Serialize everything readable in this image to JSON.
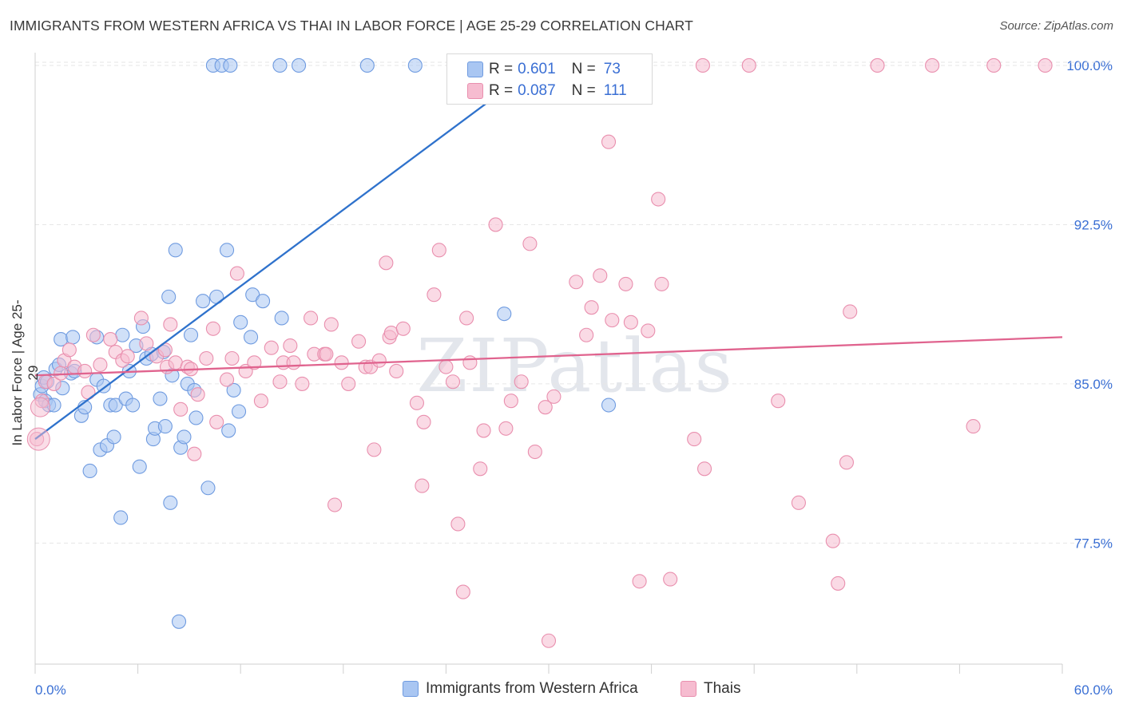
{
  "title": "IMMIGRANTS FROM WESTERN AFRICA VS THAI IN LABOR FORCE | AGE 25-29 CORRELATION CHART",
  "source": "Source: ZipAtlas.com",
  "watermark": "ZIPatlas",
  "colors": {
    "blue_fill": "#a9c6f2",
    "blue_stroke": "#6f9be0",
    "blue_line": "#2f72cc",
    "pink_fill": "#f6bcd0",
    "pink_stroke": "#e98fae",
    "pink_line": "#e0638e",
    "axis_text": "#3a6fd4"
  },
  "stats": {
    "rows": [
      {
        "r_label": "R =",
        "r_value": "0.601",
        "n_label": "N =",
        "n_value": "73"
      },
      {
        "r_label": "R =",
        "r_value": "0.087",
        "n_label": "N =",
        "n_value": "111"
      }
    ]
  },
  "chart_data": {
    "type": "scatter",
    "xlabel": "",
    "ylabel": "In Labor Force | Age 25-29",
    "x_ticks": [
      "0.0%",
      "60.0%"
    ],
    "y_ticks": [
      "100.0%",
      "92.5%",
      "85.0%",
      "77.5%"
    ],
    "y_tick_values": [
      100.0,
      92.5,
      85.0,
      77.5
    ],
    "xlim": [
      0,
      60
    ],
    "ylim": [
      71.8,
      100.6
    ],
    "grid": "horizontal dashed",
    "legend_position": "bottom",
    "series": [
      {
        "name": "Immigrants from Western Africa",
        "trend": [
          [
            0.0,
            82.4
          ],
          [
            30.0,
            100.4
          ]
        ],
        "points": [
          [
            0.3,
            84.5
          ],
          [
            0.4,
            84.9
          ],
          [
            0.5,
            85.3
          ],
          [
            0.6,
            84.2
          ],
          [
            0.7,
            85.1
          ],
          [
            0.8,
            84.0
          ],
          [
            1.1,
            84.0
          ],
          [
            1.2,
            85.7
          ],
          [
            1.4,
            85.9
          ],
          [
            1.5,
            87.1
          ],
          [
            1.6,
            84.8
          ],
          [
            2.1,
            85.5
          ],
          [
            2.2,
            87.2
          ],
          [
            2.3,
            85.6
          ],
          [
            2.7,
            83.5
          ],
          [
            2.9,
            83.9
          ],
          [
            3.2,
            80.9
          ],
          [
            3.6,
            87.2
          ],
          [
            3.6,
            85.2
          ],
          [
            3.8,
            81.9
          ],
          [
            4.0,
            84.9
          ],
          [
            4.2,
            82.1
          ],
          [
            4.4,
            84.0
          ],
          [
            4.6,
            82.5
          ],
          [
            4.7,
            84.0
          ],
          [
            5.0,
            78.7
          ],
          [
            5.1,
            87.3
          ],
          [
            5.3,
            84.3
          ],
          [
            5.5,
            85.6
          ],
          [
            5.7,
            84.0
          ],
          [
            5.9,
            86.8
          ],
          [
            6.1,
            81.1
          ],
          [
            6.3,
            87.7
          ],
          [
            6.5,
            86.2
          ],
          [
            6.8,
            86.4
          ],
          [
            6.9,
            82.4
          ],
          [
            7.0,
            82.9
          ],
          [
            7.3,
            84.3
          ],
          [
            7.5,
            86.5
          ],
          [
            7.6,
            83.0
          ],
          [
            7.8,
            89.1
          ],
          [
            7.9,
            79.4
          ],
          [
            8.0,
            85.4
          ],
          [
            8.2,
            91.3
          ],
          [
            8.4,
            73.8
          ],
          [
            8.5,
            82.0
          ],
          [
            8.7,
            82.5
          ],
          [
            8.9,
            85.0
          ],
          [
            9.1,
            87.3
          ],
          [
            9.3,
            84.7
          ],
          [
            9.4,
            83.4
          ],
          [
            9.8,
            88.9
          ],
          [
            10.1,
            80.1
          ],
          [
            10.6,
            89.1
          ],
          [
            10.4,
            100.0
          ],
          [
            10.9,
            100.0
          ],
          [
            11.2,
            91.3
          ],
          [
            11.3,
            82.8
          ],
          [
            11.4,
            100.0
          ],
          [
            11.6,
            84.7
          ],
          [
            11.9,
            83.7
          ],
          [
            12.0,
            87.9
          ],
          [
            12.6,
            87.2
          ],
          [
            12.7,
            89.2
          ],
          [
            13.3,
            88.9
          ],
          [
            14.4,
            88.1
          ],
          [
            14.3,
            100.0
          ],
          [
            15.4,
            100.0
          ],
          [
            19.4,
            100.0
          ],
          [
            22.2,
            100.0
          ],
          [
            27.4,
            88.3
          ],
          [
            31.6,
            100.0
          ],
          [
            33.5,
            84.0
          ]
        ]
      },
      {
        "name": "Thais",
        "trend": [
          [
            0.0,
            85.4
          ],
          [
            60.0,
            87.2
          ]
        ],
        "points": [
          [
            0.1,
            82.4
          ],
          [
            0.4,
            84.2
          ],
          [
            0.6,
            85.1
          ],
          [
            1.1,
            85.0
          ],
          [
            1.5,
            85.5
          ],
          [
            1.7,
            86.1
          ],
          [
            2.0,
            86.6
          ],
          [
            2.3,
            85.8
          ],
          [
            2.9,
            85.6
          ],
          [
            3.1,
            84.6
          ],
          [
            3.4,
            87.3
          ],
          [
            3.8,
            85.9
          ],
          [
            4.4,
            87.1
          ],
          [
            4.7,
            86.5
          ],
          [
            5.1,
            86.1
          ],
          [
            5.4,
            86.3
          ],
          [
            6.2,
            88.1
          ],
          [
            6.5,
            86.9
          ],
          [
            7.1,
            86.3
          ],
          [
            7.6,
            86.6
          ],
          [
            7.7,
            85.8
          ],
          [
            7.9,
            87.8
          ],
          [
            8.2,
            86.0
          ],
          [
            8.5,
            83.8
          ],
          [
            8.9,
            85.8
          ],
          [
            9.1,
            85.7
          ],
          [
            9.3,
            81.7
          ],
          [
            9.5,
            84.5
          ],
          [
            10.0,
            86.2
          ],
          [
            10.4,
            87.6
          ],
          [
            10.6,
            83.2
          ],
          [
            11.2,
            85.2
          ],
          [
            11.5,
            86.2
          ],
          [
            11.8,
            90.2
          ],
          [
            12.3,
            85.6
          ],
          [
            12.8,
            86.0
          ],
          [
            13.2,
            84.2
          ],
          [
            13.8,
            86.7
          ],
          [
            14.3,
            85.1
          ],
          [
            14.5,
            86.0
          ],
          [
            14.9,
            86.8
          ],
          [
            15.1,
            86.0
          ],
          [
            15.6,
            85.0
          ],
          [
            16.1,
            88.1
          ],
          [
            16.3,
            86.4
          ],
          [
            16.9,
            86.4
          ],
          [
            17.3,
            87.8
          ],
          [
            17.0,
            86.4
          ],
          [
            17.5,
            79.3
          ],
          [
            17.9,
            86.0
          ],
          [
            18.3,
            85.0
          ],
          [
            18.9,
            87.0
          ],
          [
            19.3,
            85.8
          ],
          [
            19.6,
            85.8
          ],
          [
            19.8,
            81.9
          ],
          [
            20.1,
            86.1
          ],
          [
            20.5,
            90.7
          ],
          [
            20.7,
            87.2
          ],
          [
            20.8,
            87.4
          ],
          [
            21.1,
            85.6
          ],
          [
            21.5,
            87.6
          ],
          [
            22.3,
            84.1
          ],
          [
            22.6,
            80.2
          ],
          [
            22.7,
            83.2
          ],
          [
            23.3,
            89.2
          ],
          [
            23.6,
            91.3
          ],
          [
            24.0,
            85.8
          ],
          [
            24.4,
            85.1
          ],
          [
            24.7,
            78.4
          ],
          [
            25.0,
            75.2
          ],
          [
            25.2,
            88.1
          ],
          [
            25.4,
            86.0
          ],
          [
            26.0,
            81.0
          ],
          [
            26.2,
            82.8
          ],
          [
            26.9,
            92.5
          ],
          [
            27.5,
            82.9
          ],
          [
            27.8,
            84.2
          ],
          [
            28.4,
            85.1
          ],
          [
            28.9,
            91.6
          ],
          [
            29.2,
            81.8
          ],
          [
            29.8,
            83.9
          ],
          [
            30.3,
            84.4
          ],
          [
            31.6,
            89.8
          ],
          [
            32.2,
            87.3
          ],
          [
            32.5,
            88.6
          ],
          [
            33.0,
            90.1
          ],
          [
            33.5,
            96.4
          ],
          [
            33.7,
            88.0
          ],
          [
            34.5,
            89.7
          ],
          [
            34.8,
            87.9
          ],
          [
            35.3,
            75.7
          ],
          [
            35.8,
            87.5
          ],
          [
            36.4,
            93.7
          ],
          [
            36.6,
            89.7
          ],
          [
            37.1,
            75.8
          ],
          [
            38.5,
            82.4
          ],
          [
            39.1,
            81.0
          ],
          [
            39.0,
            100.0
          ],
          [
            41.7,
            100.0
          ],
          [
            43.4,
            84.2
          ],
          [
            44.6,
            79.4
          ],
          [
            46.6,
            77.6
          ],
          [
            46.9,
            75.6
          ],
          [
            47.4,
            81.3
          ],
          [
            47.6,
            88.4
          ],
          [
            49.2,
            100.0
          ],
          [
            52.4,
            100.0
          ],
          [
            54.8,
            83.0
          ],
          [
            30.0,
            72.9
          ],
          [
            56.0,
            100.0
          ],
          [
            59.0,
            100.0
          ]
        ]
      }
    ]
  }
}
